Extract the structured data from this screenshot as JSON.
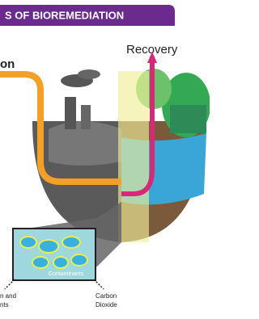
{
  "header": {
    "title": "S OF BIOREMEDIATION"
  },
  "labels": {
    "left_top": "on",
    "recovery": "Recovery",
    "contaminants": "Contaminants",
    "carbon_dioxide": [
      "Carbon",
      "Dioxide"
    ],
    "left_bottom": [
      "n and",
      "nts"
    ]
  }
}
